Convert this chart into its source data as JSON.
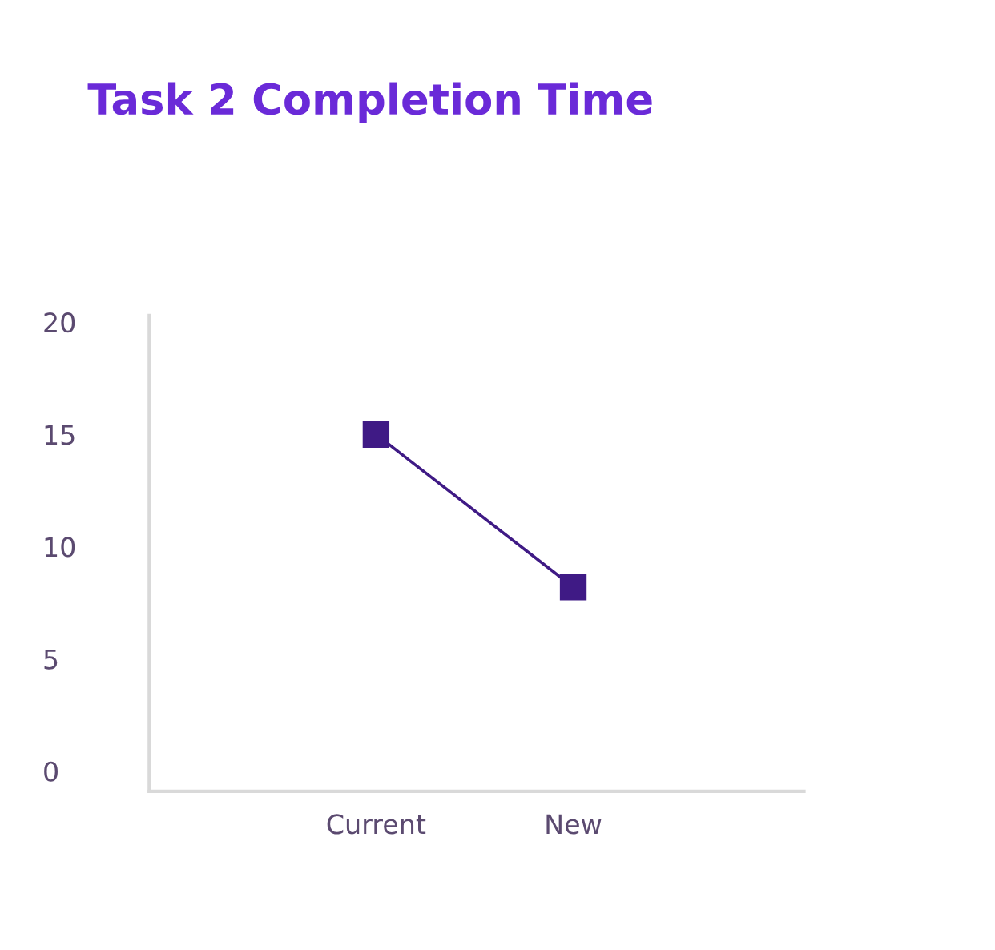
{
  "chart_data": {
    "type": "line",
    "title": "Task 2 Completion Time",
    "categories": [
      "Current",
      "New"
    ],
    "series": [
      {
        "color": "#3f1a85",
        "values": [
          15,
          8.2
        ]
      }
    ],
    "marker": "square",
    "line_style": "solid",
    "ylim": [
      -0.9,
      20.3
    ],
    "yticks": [
      0,
      5,
      10,
      15,
      20
    ],
    "grid": false,
    "legend": false
  }
}
